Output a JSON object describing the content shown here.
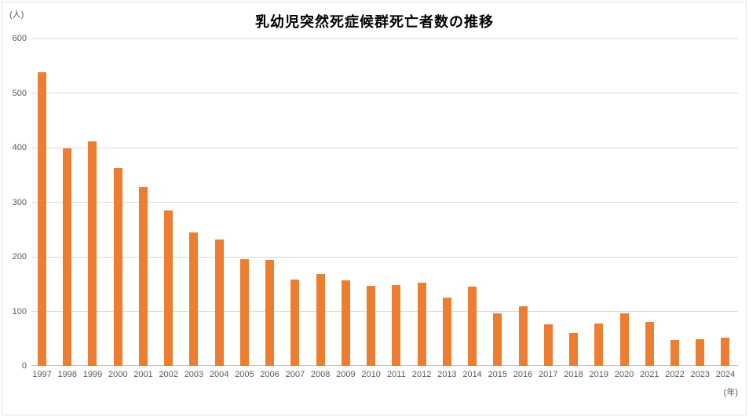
{
  "chart_data": {
    "type": "bar",
    "title": "乳幼児突然死症候群死亡者数の推移",
    "y_unit": "(人)",
    "x_unit": "(年)",
    "ylim": [
      0,
      600
    ],
    "y_ticks": [
      0,
      100,
      200,
      300,
      400,
      500,
      600
    ],
    "grid": true,
    "legend": false,
    "categories": [
      "1997",
      "1998",
      "1999",
      "2000",
      "2001",
      "2002",
      "2003",
      "2004",
      "2005",
      "2006",
      "2007",
      "2008",
      "2009",
      "2010",
      "2011",
      "2012",
      "2013",
      "2014",
      "2015",
      "2016",
      "2017",
      "2018",
      "2019",
      "2020",
      "2021",
      "2022",
      "2023",
      "2024"
    ],
    "values": [
      538,
      398,
      412,
      363,
      328,
      285,
      245,
      232,
      196,
      194,
      158,
      168,
      157,
      147,
      148,
      152,
      125,
      146,
      96,
      109,
      77,
      60,
      78,
      96,
      81,
      47,
      49,
      52
    ],
    "colors": {
      "bar": "#ED7D31",
      "gridline": "#D9D9D9",
      "axis_line": "#BFBFBF",
      "tick_label": "#595959",
      "title": "#000000"
    }
  }
}
